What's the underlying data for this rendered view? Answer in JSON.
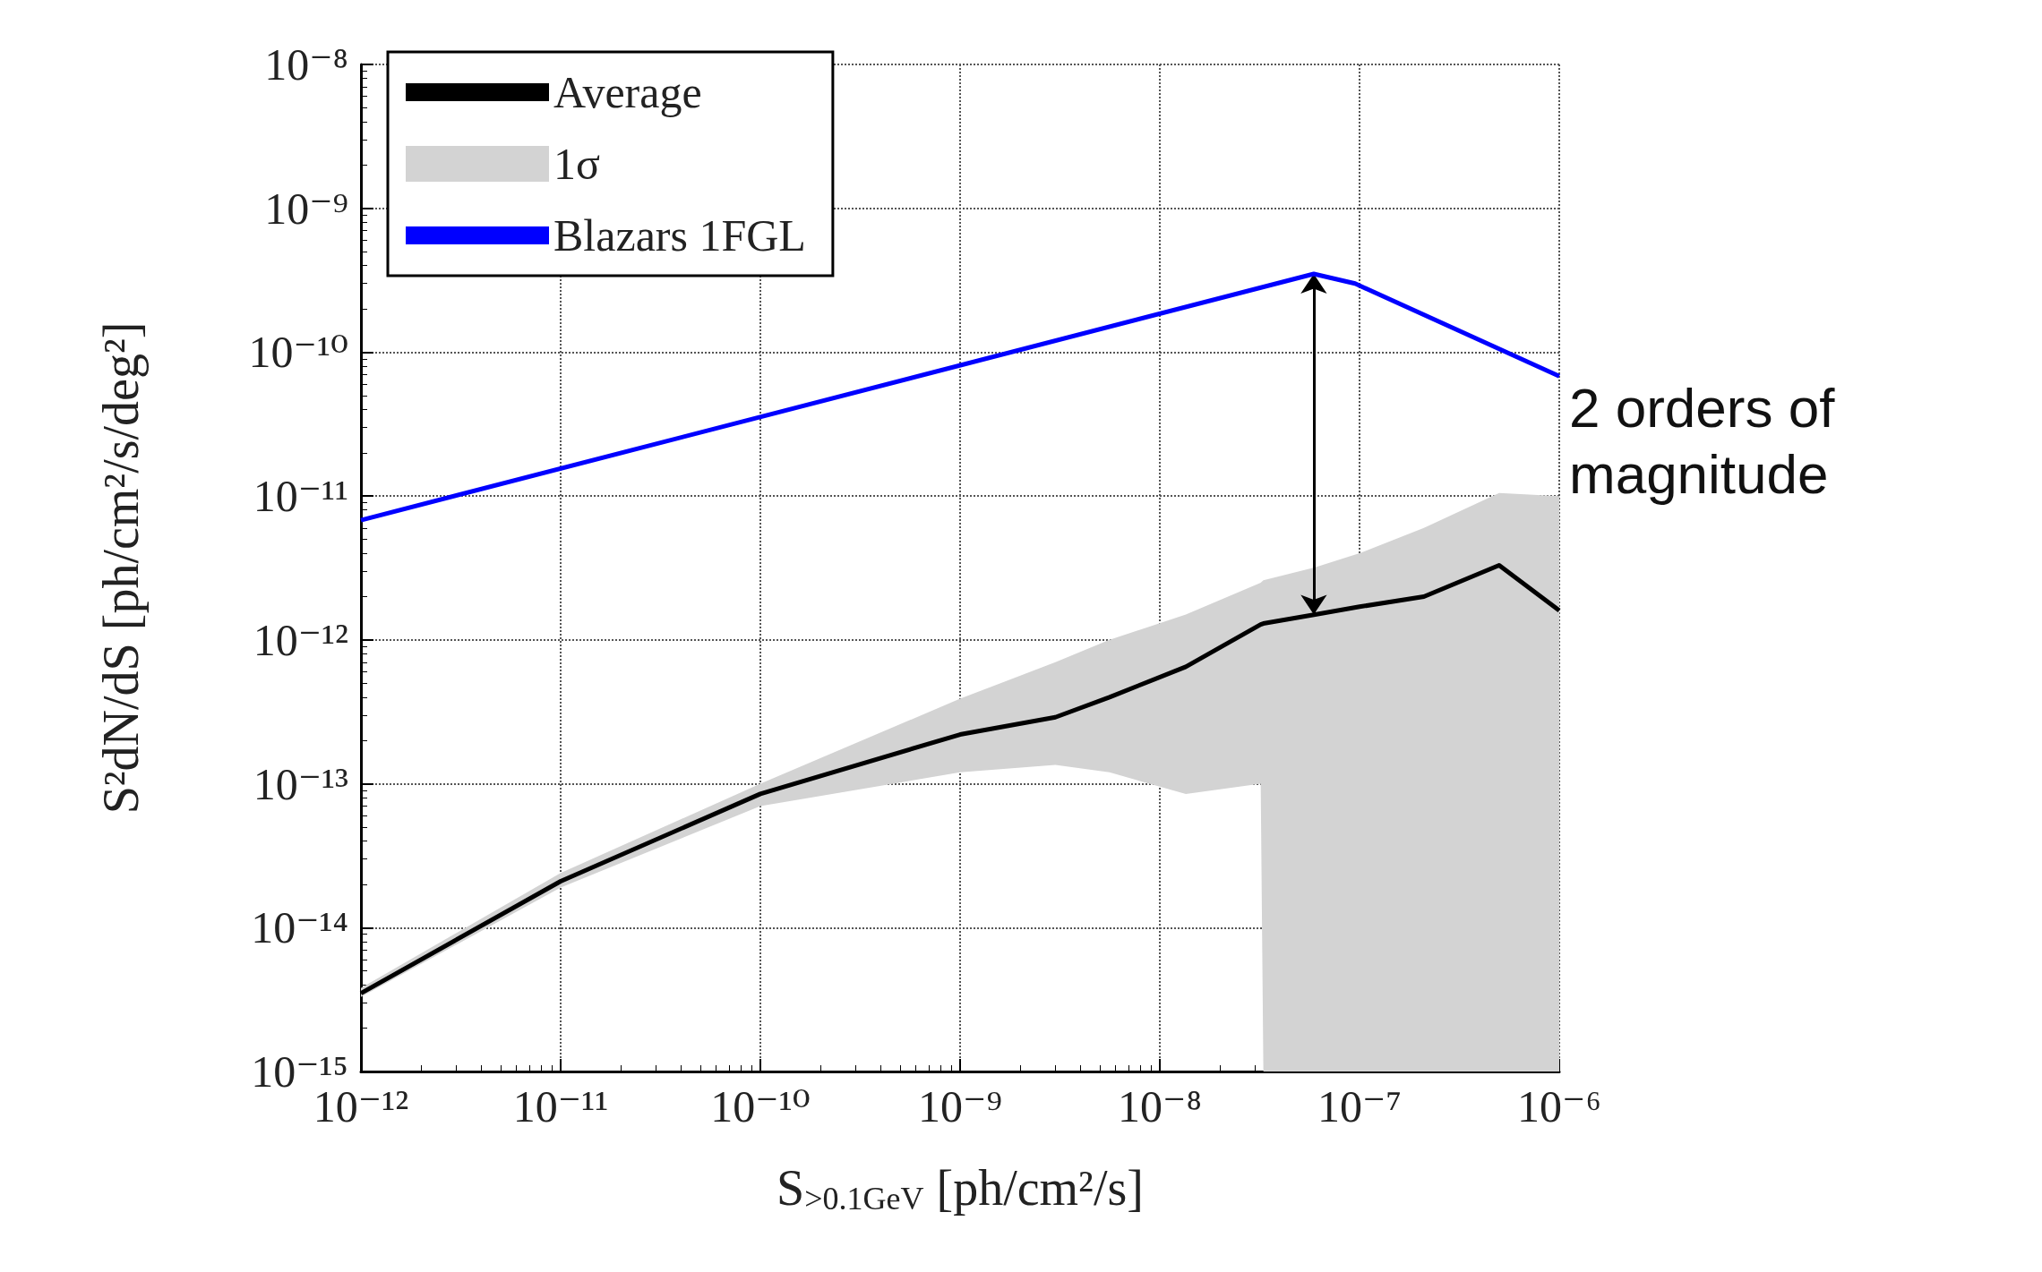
{
  "chart_data": {
    "type": "line",
    "xlabel": "S$_{>0.1GeV}$ [ph/cm²/s]",
    "ylabel": "S²dN/dS [ph/cm²/s/deg²]",
    "log": "xy",
    "grid": true,
    "legend": "top left",
    "line_style": "solid",
    "marker": "none",
    "xlim": [
      1e-12,
      1e-06
    ],
    "ylim": [
      1e-15,
      1e-08
    ],
    "xticks": [
      {
        "value": 1e-12,
        "label": "10⁻¹²"
      },
      {
        "value": 1e-11,
        "label": "10⁻¹¹"
      },
      {
        "value": 1e-10,
        "label": "10⁻¹⁰"
      },
      {
        "value": 1e-09,
        "label": "10⁻⁹"
      },
      {
        "value": 1e-08,
        "label": "10⁻⁸"
      },
      {
        "value": 1e-07,
        "label": "10⁻⁷"
      },
      {
        "value": 1e-06,
        "label": "10⁻⁶"
      }
    ],
    "yticks": [
      {
        "value": 1e-15,
        "label": "10⁻¹⁵"
      },
      {
        "value": 1e-14,
        "label": "10⁻¹⁴"
      },
      {
        "value": 1e-13,
        "label": "10⁻¹³"
      },
      {
        "value": 1e-12,
        "label": "10⁻¹²"
      },
      {
        "value": 1e-11,
        "label": "10⁻¹¹"
      },
      {
        "value": 1e-10,
        "label": "10⁻¹⁰"
      },
      {
        "value": 1e-09,
        "label": "10⁻⁹"
      },
      {
        "value": 1e-08,
        "label": "10⁻⁸"
      }
    ],
    "series": [
      {
        "name": "Average",
        "color": "#000000",
        "x": [
          1e-12,
          1e-11,
          1e-10,
          1e-09,
          3e-09,
          5.6e-09,
          1.35e-08,
          3.2e-08,
          3.3e-08,
          6e-08,
          1e-07,
          2.1e-07,
          5e-07,
          1e-06
        ],
        "values": [
          3.5e-15,
          2.1e-14,
          8.5e-14,
          2.2e-13,
          2.9e-13,
          4e-13,
          6.5e-13,
          1.28e-12,
          1.3e-12,
          1.5e-12,
          1.7e-12,
          2e-12,
          3.3e-12,
          1.6e-12
        ],
        "upper": [
          3.8e-15,
          2.4e-14,
          1e-13,
          3.9e-13,
          7e-13,
          1e-12,
          1.5e-12,
          2.5e-12,
          2.6e-12,
          3.2e-12,
          4e-12,
          6e-12,
          1.05e-11,
          1e-11
        ],
        "lower": [
          3.3e-15,
          1.9e-14,
          7e-14,
          1.2e-13,
          1.35e-13,
          1.2e-13,
          8.5e-14,
          1e-13,
          1e-15,
          1e-15,
          1e-15,
          1e-15,
          1e-15,
          1e-15
        ]
      },
      {
        "name": "1σ",
        "type": "area",
        "color": "#d3d3d3"
      },
      {
        "name": "Blazars 1FGL",
        "color": "#0000ff",
        "x": [
          1e-12,
          5.9e-08,
          9.5e-08,
          1e-06
        ],
        "values": [
          6.8e-12,
          3.5e-10,
          3e-10,
          6.8e-11
        ]
      }
    ],
    "annotations": [
      "2 orders of magnitude"
    ]
  }
}
